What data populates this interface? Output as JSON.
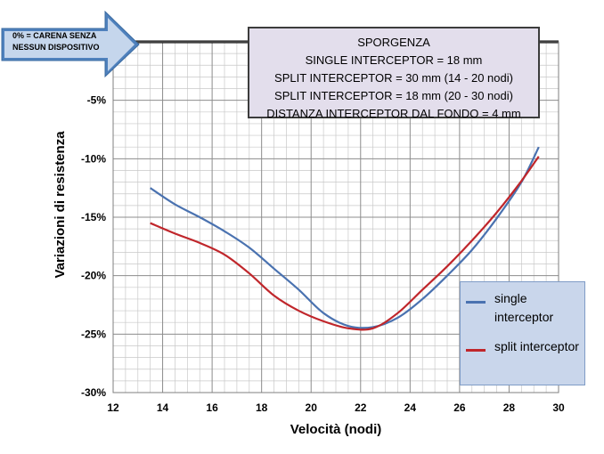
{
  "note": {
    "arrow_text": [
      "0% = CARENA SENZA",
      "NESSUN DISPOSITIVO"
    ]
  },
  "info_box": {
    "lines": [
      "SPORGENZA",
      "SINGLE INTERCEPTOR = 18 mm",
      "SPLIT INTERCEPTOR = 30 mm (14 - 20 nodi)",
      "SPLIT INTERCEPTOR = 18 mm (20 - 30 nodi)",
      "DISTANZA INTERCEPTOR DAL FONDO = 4 mm"
    ]
  },
  "colors": {
    "arrow": "#4f81bd",
    "single": "#4a72b0",
    "split": "#c0262b",
    "grid_minor": "#c8c8c8",
    "grid_major": "#8c8c8c"
  },
  "chart_data": {
    "type": "line",
    "xlabel": "Velocità  (nodi)",
    "ylabel": "Variazioni di resistenza",
    "xlim": [
      12,
      30
    ],
    "ylim": [
      -30,
      0
    ],
    "x_ticks": [
      12,
      14,
      16,
      18,
      20,
      22,
      24,
      26,
      28,
      30
    ],
    "y_ticks": [
      {
        "value": -5,
        "label": "-5%"
      },
      {
        "value": -10,
        "label": "-10%"
      },
      {
        "value": -15,
        "label": "-15%"
      },
      {
        "value": -20,
        "label": "-20%"
      },
      {
        "value": -25,
        "label": "-25%"
      },
      {
        "value": -30,
        "label": "-30%"
      }
    ],
    "grid": true,
    "legend_position": "bottom-right",
    "series": [
      {
        "name": "single interceptor",
        "x": [
          13.5,
          14.5,
          15.5,
          16.5,
          17.5,
          18.5,
          19.5,
          20.5,
          21.5,
          22.5,
          23.5,
          24.5,
          25.5,
          26.5,
          27.5,
          28.5,
          29.2
        ],
        "y": [
          -12.5,
          -13.9,
          -15.0,
          -16.2,
          -17.6,
          -19.4,
          -21.2,
          -23.2,
          -24.3,
          -24.4,
          -23.6,
          -22.0,
          -20.0,
          -17.8,
          -15.1,
          -12.0,
          -9.0
        ]
      },
      {
        "name": "split interceptor",
        "x": [
          13.5,
          14.5,
          15.5,
          16.5,
          17.5,
          18.5,
          19.5,
          20.5,
          21.5,
          22.5,
          23.5,
          24.5,
          25.5,
          26.5,
          27.5,
          28.5,
          29.2
        ],
        "y": [
          -15.5,
          -16.4,
          -17.2,
          -18.2,
          -19.8,
          -21.7,
          -23.0,
          -23.9,
          -24.5,
          -24.5,
          -23.2,
          -21.2,
          -19.2,
          -17.0,
          -14.6,
          -11.9,
          -9.8
        ]
      }
    ]
  }
}
